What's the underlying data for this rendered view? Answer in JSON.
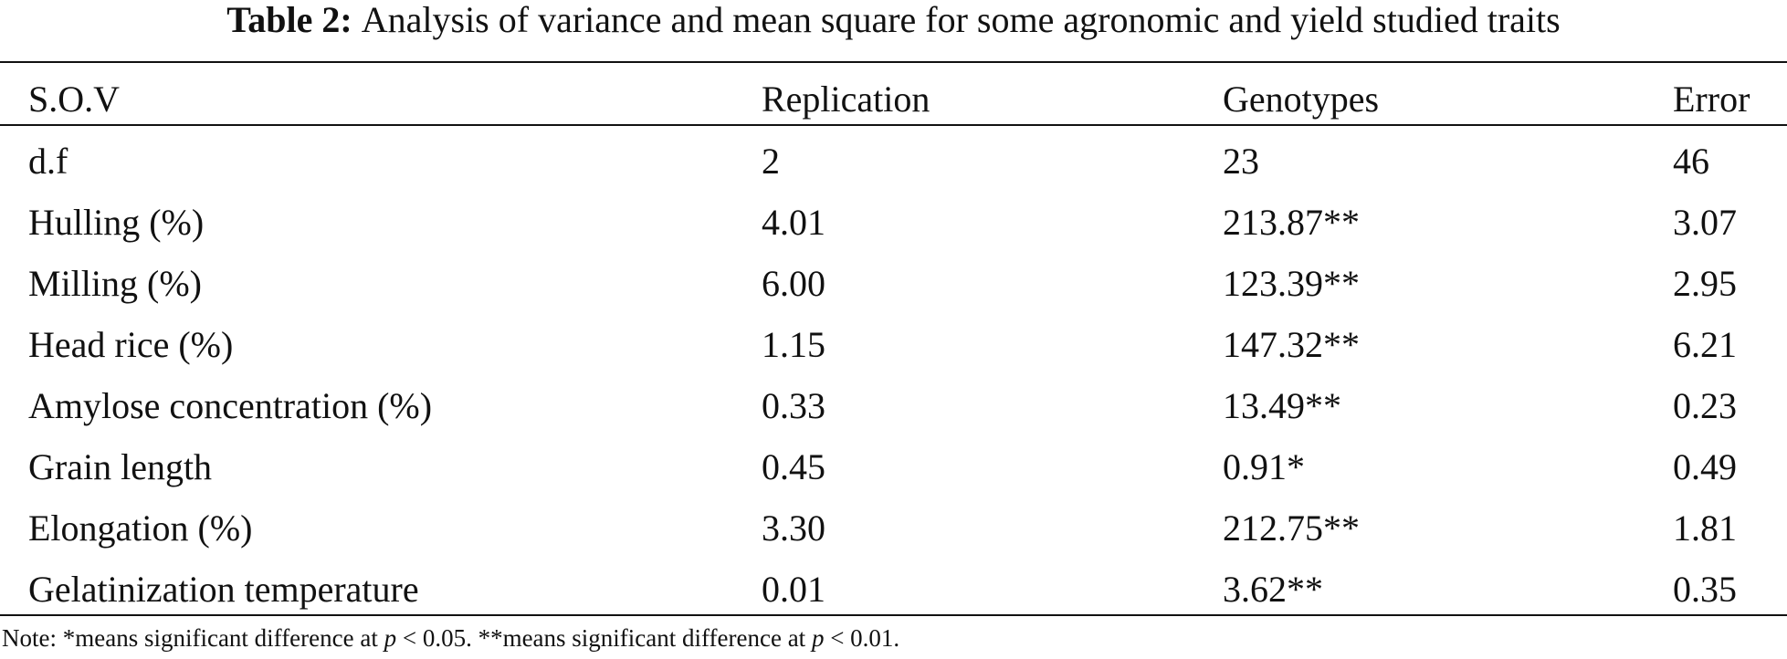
{
  "table": {
    "title_label": "Table 2:",
    "title": "Analysis of variance and mean square for some agronomic and yield studied traits",
    "header": [
      "S.O.V",
      "Replication",
      "Genotypes",
      "Error"
    ],
    "rows": [
      [
        "d.f",
        "2",
        "23",
        "46"
      ],
      [
        "Hulling (%)",
        "4.01",
        "213.87**",
        "3.07"
      ],
      [
        "Milling (%)",
        "6.00",
        "123.39**",
        "2.95"
      ],
      [
        "Head rice (%)",
        "1.15",
        "147.32**",
        "6.21"
      ],
      [
        "Amylose concentration (%)",
        "0.33",
        "13.49**",
        "0.23"
      ],
      [
        "Grain length",
        "0.45",
        "0.91*",
        "0.49"
      ],
      [
        "Elongation (%)",
        "3.30",
        "212.75**",
        "1.81"
      ],
      [
        "Gelatinization temperature",
        "0.01",
        "3.62**",
        "0.35"
      ]
    ],
    "note": [
      "Note: *means significant difference at ",
      "p",
      " < 0.05. **means significant difference at ",
      "p",
      " < 0.01."
    ]
  }
}
